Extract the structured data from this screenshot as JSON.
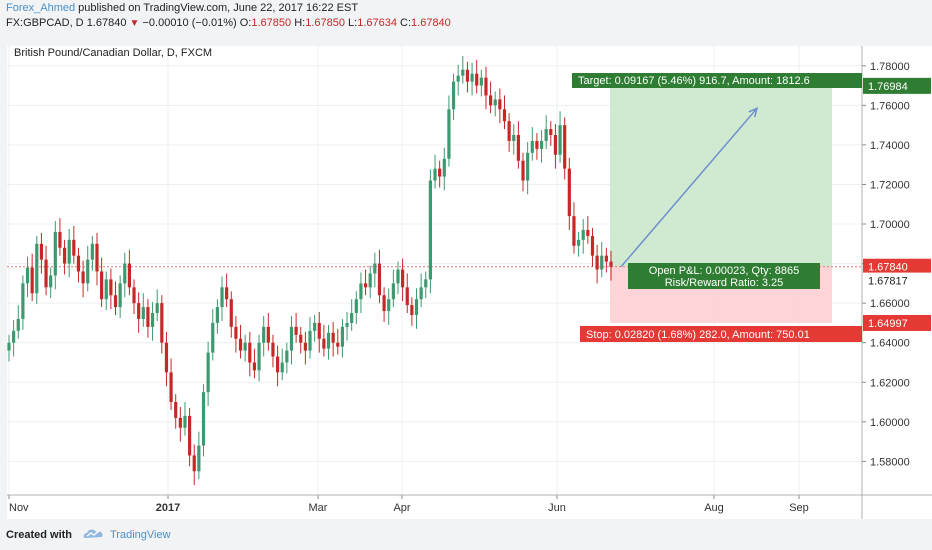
{
  "header": {
    "user": "Forex_Ahmed",
    "published": "published on TradingView.com, June 22, 2017 16:22 EST",
    "symbol_prefix": "FX:GBPCAD, D",
    "price": "1.67840",
    "change": "−0.00010 (−0.01%)",
    "o_label": "O:",
    "o_val": "1.67850",
    "h_label": "H:",
    "h_val": "1.67850",
    "l_label": "L:",
    "l_val": "1.67634",
    "c_label": "C:",
    "c_val": "1.67840"
  },
  "footer": {
    "created_with": "Created with",
    "brand": "TradingView"
  },
  "colors": {
    "up": "#3d9970",
    "down": "#c62828",
    "target_fill": "#c8e6c9",
    "stop_fill": "#ffcdd2",
    "target_label": "#2e7d32",
    "stop_label": "#e53935",
    "arrow": "#6f8fcf"
  },
  "chart_data": {
    "type": "candlestick",
    "title": "British Pound/Canadian Dollar, D, FXCM",
    "y_ticks": [
      1.58,
      1.6,
      1.62,
      1.64,
      1.66,
      1.68,
      1.7,
      1.72,
      1.74,
      1.76,
      1.78
    ],
    "y_tick_labels": [
      "1.58000",
      "1.60000",
      "1.62000",
      "1.64000",
      "1.66000",
      "1.68000",
      "1.70000",
      "1.72000",
      "1.74000",
      "1.76000",
      "1.78000"
    ],
    "ylim": [
      1.563,
      1.79
    ],
    "x_ticks": [
      "Nov",
      "2017",
      "Mar",
      "Apr",
      "Jun",
      "Aug",
      "Sep"
    ],
    "x_ticks_bold": [
      false,
      true,
      false,
      false,
      false,
      false,
      false
    ],
    "close_series": [
      1.64,
      1.646,
      1.652,
      1.67,
      1.678,
      1.665,
      1.69,
      1.682,
      1.668,
      1.674,
      1.696,
      1.688,
      1.68,
      1.692,
      1.684,
      1.676,
      1.67,
      1.682,
      1.69,
      1.676,
      1.662,
      1.672,
      1.664,
      1.658,
      1.67,
      1.68,
      1.668,
      1.66,
      1.652,
      1.658,
      1.648,
      1.655,
      1.66,
      1.64,
      1.625,
      1.61,
      1.602,
      1.597,
      1.603,
      1.583,
      1.575,
      1.588,
      1.615,
      1.635,
      1.65,
      1.658,
      1.668,
      1.662,
      1.648,
      1.642,
      1.636,
      1.64,
      1.63,
      1.626,
      1.64,
      1.648,
      1.64,
      1.633,
      1.625,
      1.63,
      1.636,
      1.648,
      1.644,
      1.64,
      1.636,
      1.646,
      1.65,
      1.642,
      1.637,
      1.645,
      1.64,
      1.638,
      1.648,
      1.65,
      1.655,
      1.662,
      1.67,
      1.668,
      1.675,
      1.68,
      1.664,
      1.656,
      1.662,
      1.67,
      1.677,
      1.668,
      1.659,
      1.654,
      1.662,
      1.668,
      1.672,
      1.722,
      1.728,
      1.724,
      1.733,
      1.758,
      1.772,
      1.775,
      1.778,
      1.772,
      1.776,
      1.77,
      1.774,
      1.765,
      1.76,
      1.763,
      1.758,
      1.752,
      1.742,
      1.745,
      1.732,
      1.722,
      1.736,
      1.742,
      1.738,
      1.742,
      1.748,
      1.745,
      1.735,
      1.75,
      1.728,
      1.704,
      1.689,
      1.692,
      1.697,
      1.694,
      1.684,
      1.677,
      1.684,
      1.681,
      1.6784
    ],
    "price_labels": {
      "target": "1.76984",
      "last": "1.67840",
      "current": "1.67817",
      "stop": "1.64997"
    },
    "levels": {
      "target": 1.76984,
      "entry": 1.6784,
      "stop": 1.64997
    },
    "annotations": {
      "target": "Target: 0.09167 (5.46%) 916.7, Amount: 1812.6",
      "pnl": "Open P&L: 0.00023, Qty: 8865",
      "rr": "Risk/Reward Ratio: 3.25",
      "stop": "Stop: 0.02820 (1.68%) 282.0, Amount: 750.01"
    },
    "grid": true
  }
}
